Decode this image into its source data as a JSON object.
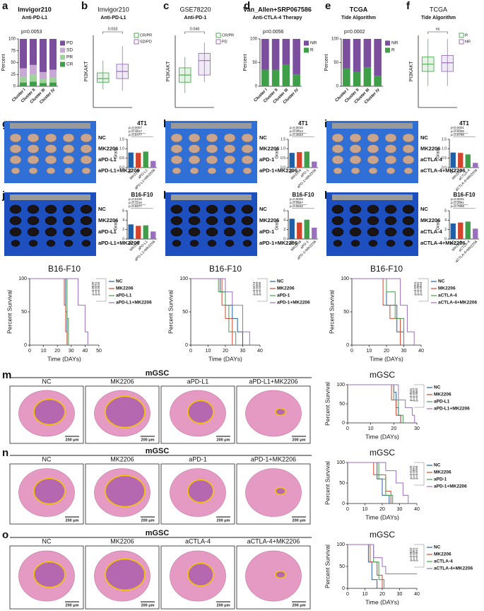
{
  "chart_data": [
    {
      "type": "stacked_bar",
      "label": "a",
      "title": "Imvigor210",
      "subtitle": "Anti-PD-L1",
      "p_value": "p=0.0053",
      "ylabel": "Percent",
      "ylim": [
        0,
        100
      ],
      "yticks": [
        0,
        25,
        50,
        75,
        100
      ],
      "categories": [
        "Cluster I",
        "Cluster II",
        "Cluster III",
        "Cluster IV"
      ],
      "series": [
        {
          "name": "CR",
          "color": "#3f9f48",
          "values": [
            8,
            10,
            7,
            8
          ]
        },
        {
          "name": "PR",
          "color": "#9ed39a",
          "values": [
            12,
            15,
            8,
            10
          ]
        },
        {
          "name": "SD",
          "color": "#c8a9d6",
          "values": [
            18,
            20,
            15,
            17
          ]
        },
        {
          "name": "PD",
          "color": "#7b4f9d",
          "values": [
            62,
            55,
            70,
            65
          ]
        }
      ]
    },
    {
      "type": "box",
      "label": "b",
      "title": "Imvigor210",
      "subtitle": "Anti-PD-L1",
      "p_value": "0.033",
      "ylabel": "PI3KAKT",
      "ylim": [
        0,
        10
      ],
      "series": [
        {
          "name": "CR/PR",
          "color": "#4caf50",
          "values": [
            2.5,
            3.5,
            4,
            4.8,
            6.5
          ]
        },
        {
          "name": "SD/PD",
          "color": "#9b6fc0",
          "values": [
            2.3,
            4,
            5,
            6,
            8.5
          ]
        }
      ]
    },
    {
      "type": "box",
      "label": "c",
      "title": "GSE78220",
      "subtitle": "Anti-PD-1",
      "p_value": "0.046",
      "ylabel": "PI3KAKT",
      "ylim": [
        0,
        10
      ],
      "series": [
        {
          "name": "CR/PR",
          "color": "#4caf50",
          "values": [
            2,
            3.5,
            4.5,
            5.5,
            7
          ]
        },
        {
          "name": "PD",
          "color": "#9b6fc0",
          "values": [
            3.5,
            4.5,
            6.5,
            7.5,
            9
          ]
        }
      ]
    },
    {
      "type": "stacked_bar",
      "label": "d",
      "title": "Van_Allen+SRP067586",
      "subtitle": "Anti-CTLA-4 Therapy",
      "p_value": "p=0.0056",
      "ylabel": "Percent",
      "ylim": [
        0,
        100
      ],
      "yticks": [
        0,
        50,
        100
      ],
      "categories": [
        "Cluster I",
        "Cluster II",
        "Cluster III",
        "Cluster IV"
      ],
      "series": [
        {
          "name": "R",
          "color": "#3f9f48",
          "values": [
            35,
            35,
            45,
            25
          ]
        },
        {
          "name": "NR",
          "color": "#7b4f9d",
          "values": [
            65,
            65,
            55,
            75
          ]
        }
      ]
    },
    {
      "type": "stacked_bar",
      "label": "e",
      "title": "TCGA",
      "subtitle": "Tide Algorithm",
      "p_value": "p=0.0002",
      "ylabel": "Percent",
      "ylim": [
        0,
        100
      ],
      "yticks": [
        0,
        50,
        100
      ],
      "categories": [
        "Cluster I",
        "Cluster II",
        "Cluster III",
        "Cluster IV"
      ],
      "series": [
        {
          "name": "R",
          "color": "#3f9f48",
          "values": [
            38,
            30,
            40,
            22
          ]
        },
        {
          "name": "NR",
          "color": "#7b4f9d",
          "values": [
            62,
            70,
            60,
            78
          ]
        }
      ]
    },
    {
      "type": "box",
      "label": "f",
      "title": "TCGA",
      "subtitle": "Tide Algorithm",
      "p_value": "ns",
      "ylabel": "PI3KAKT",
      "ylim": [
        0,
        10
      ],
      "series": [
        {
          "name": "R",
          "color": "#4caf50",
          "values": [
            3,
            5,
            6,
            7,
            9.5
          ]
        },
        {
          "name": "NR",
          "color": "#9b6fc0",
          "values": [
            3,
            5,
            6.2,
            7.2,
            9.5
          ]
        }
      ]
    },
    {
      "type": "bar",
      "label": "g",
      "title": "4T1",
      "ylabel": "Gram",
      "ylim": [
        0,
        1.5
      ],
      "yticks": [
        {
          "value": 0,
          "label": "0.0"
        },
        {
          "value": 0.5,
          "label": "0.5"
        },
        {
          "value": 1,
          "label": "1.0"
        },
        {
          "value": 1.5,
          "label": "1.5"
        }
      ],
      "categories": [
        "NC",
        "MK2206",
        "aPD-L1",
        "aPD-L1+MK2206"
      ],
      "colors": [
        "#1f5fa8",
        "#d2452c",
        "#3f9f48",
        "#9b6fc0"
      ],
      "values": [
        0.8,
        0.78,
        0.85,
        0.35
      ],
      "p_values": [
        "p=0.0007",
        "p=0.1617",
        "p=0.8477"
      ]
    },
    {
      "type": "bar",
      "label": "h",
      "title": "4T1",
      "ylabel": "Gram",
      "ylim": [
        0,
        1.5
      ],
      "yticks": [
        {
          "value": 0,
          "label": "0.0"
        },
        {
          "value": 0.5,
          "label": "0.5"
        },
        {
          "value": 1,
          "label": "1.0"
        },
        {
          "value": 1.5,
          "label": "1.5"
        }
      ],
      "categories": [
        "NC",
        "MK2206",
        "aPD-1",
        "aPD-1+MK2206"
      ],
      "colors": [
        "#1f5fa8",
        "#d2452c",
        "#3f9f48",
        "#9b6fc0"
      ],
      "values": [
        0.78,
        0.82,
        0.85,
        0.32
      ],
      "p_values": [
        "p=0.0010",
        "p=0.2914",
        "p=0.3833"
      ]
    },
    {
      "type": "bar",
      "label": "i",
      "title": "4T1",
      "ylabel": "Gram",
      "ylim": [
        0,
        1.5
      ],
      "yticks": [
        {
          "value": 0,
          "label": "0.0"
        },
        {
          "value": 0.5,
          "label": "0.5"
        },
        {
          "value": 1,
          "label": "1.0"
        },
        {
          "value": 1.5,
          "label": "1.5"
        }
      ],
      "categories": [
        "NC",
        "MK2206",
        "aCTLA-4",
        "aCTLA-4+MK2206"
      ],
      "colors": [
        "#1f5fa8",
        "#d2452c",
        "#3f9f48",
        "#9b6fc0"
      ],
      "values": [
        0.8,
        0.78,
        0.7,
        0.25
      ],
      "p_values": [
        "p<0.0001",
        "p=0.6405",
        "p=0.8789"
      ]
    },
    {
      "type": "bar",
      "label": "j",
      "title": "B16-F10",
      "ylabel": "Gram",
      "ylim": [
        0,
        6
      ],
      "yticks": [
        0,
        2,
        4,
        6
      ],
      "categories": [
        "NC",
        "MK2206",
        "aPD-L1",
        "aPD-L1+MK2206"
      ],
      "colors": [
        "#1f5fa8",
        "#d2452c",
        "#3f9f48",
        "#9b6fc0"
      ],
      "values": [
        3.1,
        2.8,
        2.9,
        1.6
      ],
      "p_values": [
        "p=0.0106",
        "p=0.1216",
        "p=0.5577"
      ]
    },
    {
      "type": "bar",
      "label": "k",
      "title": "B16-F10",
      "ylabel": "Gram",
      "ylim": [
        0,
        6
      ],
      "yticks": [
        0,
        2,
        4,
        6
      ],
      "categories": [
        "NC",
        "MK2206",
        "aPD-1",
        "aPD-1+MK2206"
      ],
      "colors": [
        "#1f5fa8",
        "#d2452c",
        "#3f9f48",
        "#9b6fc0"
      ],
      "values": [
        4.3,
        3.5,
        4.1,
        2.4
      ],
      "p_values": [
        "p=0.0028",
        "p=0.0587",
        "p=0.0642"
      ]
    },
    {
      "type": "bar",
      "label": "l",
      "title": "B16-F10",
      "ylabel": "Gram",
      "ylim": [
        0,
        6
      ],
      "yticks": [
        0,
        2,
        4,
        6
      ],
      "categories": [
        "NC",
        "MK2206",
        "aCTLA-4",
        "aCTLA-4+MK2206"
      ],
      "colors": [
        "#1f5fa8",
        "#d2452c",
        "#3f9f48",
        "#9b6fc0"
      ],
      "values": [
        3.3,
        3.5,
        3.7,
        2.2
      ],
      "p_values": [
        "p=0.0031",
        "p=0.2991",
        "p=0.7908"
      ]
    },
    {
      "type": "survival",
      "title": "B16-F10",
      "ylabel": "Percent Survival",
      "xlabel": "Time (DAYs)",
      "xlim": [
        0,
        50
      ],
      "xticks": [
        0,
        10,
        20,
        30,
        40,
        50
      ],
      "ylim": [
        0,
        100
      ],
      "yticks": [
        0,
        50,
        100
      ],
      "p_values": [
        "p=0.8020",
        "p=0.0291",
        "p=0.0026"
      ],
      "series": [
        {
          "name": "NC",
          "color": "#1f5fa8",
          "x": [
            0,
            26,
            27
          ],
          "values": [
            100,
            50,
            0
          ]
        },
        {
          "name": "MK2206",
          "color": "#d2452c",
          "x": [
            0,
            25,
            26,
            27
          ],
          "values": [
            100,
            60,
            20,
            0
          ]
        },
        {
          "name": "aPD-L1",
          "color": "#3f9f48",
          "x": [
            0,
            27,
            28
          ],
          "values": [
            100,
            40,
            0
          ]
        },
        {
          "name": "aPD-L1+MK2206",
          "color": "#9b6fc0",
          "x": [
            0,
            35,
            40,
            42
          ],
          "values": [
            100,
            60,
            20,
            0
          ]
        }
      ]
    },
    {
      "type": "survival",
      "title": "B16-F10",
      "ylabel": "Percent Survival",
      "xlabel": "Time (DAYs)",
      "xlim": [
        0,
        40
      ],
      "xticks": [
        0,
        10,
        20,
        30,
        40
      ],
      "ylim": [
        0,
        100
      ],
      "yticks": [
        0,
        50,
        100
      ],
      "p_values": [
        "p=0.0274",
        "p=0.0469",
        "p=0.0495"
      ],
      "series": [
        {
          "name": "NC",
          "color": "#1f5fa8",
          "x": [
            0,
            17,
            20,
            24,
            27,
            30
          ],
          "values": [
            100,
            80,
            60,
            40,
            20,
            0
          ]
        },
        {
          "name": "MK2206",
          "color": "#d2452c",
          "x": [
            0,
            18,
            20,
            24
          ],
          "values": [
            100,
            60,
            40,
            0
          ]
        },
        {
          "name": "aPD-1",
          "color": "#3f9f48",
          "x": [
            0,
            16,
            20,
            22,
            26
          ],
          "values": [
            100,
            80,
            60,
            20,
            0
          ]
        },
        {
          "name": "aPD-1+MK2206",
          "color": "#9b6fc0",
          "x": [
            0,
            20,
            24,
            30,
            34
          ],
          "values": [
            100,
            80,
            60,
            20,
            0
          ]
        }
      ]
    },
    {
      "type": "survival",
      "title": "B16-F10",
      "ylabel": "Percent Survival",
      "xlabel": "Time (DAYs)",
      "xlim": [
        0,
        40
      ],
      "xticks": [
        0,
        10,
        20,
        30,
        40
      ],
      "ylim": [
        0,
        100
      ],
      "yticks": [
        0,
        50,
        100
      ],
      "p_values": [
        "p=0.0201",
        "p=0.0082",
        "p=0.0034"
      ],
      "series": [
        {
          "name": "NC",
          "color": "#1f5fa8",
          "x": [
            0,
            20,
            26,
            30
          ],
          "values": [
            100,
            60,
            20,
            0
          ]
        },
        {
          "name": "MK2206",
          "color": "#d2452c",
          "x": [
            0,
            18,
            22,
            28
          ],
          "values": [
            100,
            60,
            40,
            0
          ]
        },
        {
          "name": "aCTLA-4",
          "color": "#3f9f48",
          "x": [
            0,
            20,
            25,
            30
          ],
          "values": [
            100,
            80,
            40,
            0
          ]
        },
        {
          "name": "aCTLA-4+MK2206",
          "color": "#9b6fc0",
          "x": [
            0,
            28,
            32,
            36
          ],
          "values": [
            100,
            60,
            20,
            0
          ]
        }
      ]
    },
    {
      "type": "histology",
      "label": "m",
      "title": "mGSC",
      "scale_label": "200 μm",
      "categories": [
        "NC",
        "MK2206",
        "aPD-L1",
        "aPD-L1+MK2206"
      ],
      "colors": [
        "#1f5fa8",
        "#d2452c",
        "#3f9f48",
        "#9b6fc0"
      ]
    },
    {
      "type": "survival",
      "title": "mGSC",
      "ylabel": "Percent Survival",
      "xlabel": "Time (DAYs)",
      "xlim": [
        0,
        30
      ],
      "xticks": [
        0,
        10,
        20,
        30
      ],
      "ylim": [
        0,
        100
      ],
      "yticks": [
        0,
        50,
        100
      ],
      "p_values": [
        "p=0.0011",
        "p=0.0307",
        "p=0.0062"
      ],
      "series": [
        {
          "name": "NC",
          "color": "#1f5fa8",
          "x": [
            0,
            20,
            21,
            22,
            23
          ],
          "values": [
            100,
            80,
            40,
            20,
            0
          ]
        },
        {
          "name": "MK2206",
          "color": "#d2452c",
          "x": [
            0,
            19,
            21,
            23
          ],
          "values": [
            100,
            60,
            20,
            0
          ]
        },
        {
          "name": "aPD-L1",
          "color": "#3f9f48",
          "x": [
            0,
            20,
            22,
            24
          ],
          "values": [
            100,
            60,
            20,
            0
          ]
        },
        {
          "name": "aPD-L1+MK2206",
          "color": "#9b6fc0",
          "x": [
            0,
            22,
            25,
            28,
            29
          ],
          "values": [
            100,
            60,
            40,
            20,
            0
          ]
        }
      ]
    },
    {
      "type": "histology",
      "label": "n",
      "title": "mGSC",
      "scale_label": "200 μm",
      "categories": [
        "NC",
        "MK2206",
        "aPD-1",
        "aPD-1+MK2206"
      ],
      "colors": [
        "#1f5fa8",
        "#d2452c",
        "#3f9f48",
        "#9b6fc0"
      ]
    },
    {
      "type": "survival",
      "title": "mGSC",
      "ylabel": "Percent Survival",
      "xlabel": "Time (DAYs)",
      "xlim": [
        0,
        40
      ],
      "xticks": [
        0,
        10,
        20,
        30,
        40
      ],
      "ylim": [
        0,
        100
      ],
      "yticks": [
        0,
        50,
        100
      ],
      "p_values": [
        "p=0.0125",
        "p=0.0091",
        "p=0.0265"
      ],
      "series": [
        {
          "name": "NC",
          "color": "#1f5fa8",
          "x": [
            0,
            17,
            20,
            24
          ],
          "values": [
            100,
            60,
            20,
            0
          ]
        },
        {
          "name": "MK2206",
          "color": "#d2452c",
          "x": [
            0,
            15,
            22,
            25
          ],
          "values": [
            100,
            70,
            30,
            0
          ]
        },
        {
          "name": "aPD-1",
          "color": "#3f9f48",
          "x": [
            0,
            18,
            22,
            26
          ],
          "values": [
            100,
            60,
            20,
            0
          ]
        },
        {
          "name": "aPD-1+MK2206",
          "color": "#9b6fc0",
          "x": [
            0,
            22,
            28,
            32,
            35
          ],
          "values": [
            100,
            80,
            50,
            20,
            0
          ]
        }
      ]
    },
    {
      "type": "histology",
      "label": "o",
      "title": "mGSC",
      "scale_label": "200 μm",
      "categories": [
        "NC",
        "MK2206",
        "aCTLA-4",
        "aCTLA-4+MK2206"
      ],
      "colors": [
        "#1f5fa8",
        "#d2452c",
        "#3f9f48",
        "#9b6fc0"
      ]
    },
    {
      "type": "survival",
      "title": "mGSC",
      "ylabel": "Percent Survival",
      "xlabel": "Time (DAYs)",
      "xlim": [
        0,
        40
      ],
      "xticks": [
        0,
        10,
        20,
        30,
        40
      ],
      "ylim": [
        0,
        100
      ],
      "yticks": [
        0,
        50,
        100
      ],
      "p_values": [
        "p=0.0023",
        "p=0.0301",
        "p=0.0041"
      ],
      "series": [
        {
          "name": "NC",
          "color": "#1f5fa8",
          "x": [
            0,
            12,
            14,
            17
          ],
          "values": [
            100,
            60,
            20,
            0
          ]
        },
        {
          "name": "MK2206",
          "color": "#d2452c",
          "x": [
            0,
            13,
            17,
            20
          ],
          "values": [
            100,
            60,
            30,
            0
          ]
        },
        {
          "name": "aCTLA-4",
          "color": "#3f9f48",
          "x": [
            0,
            15,
            18,
            21
          ],
          "values": [
            100,
            60,
            20,
            0
          ]
        },
        {
          "name": "aCTLA-4+MK2206",
          "color": "#9b6fc0",
          "x": [
            0,
            15,
            20,
            22,
            40
          ],
          "values": [
            100,
            70,
            50,
            33,
            33
          ]
        }
      ]
    }
  ]
}
